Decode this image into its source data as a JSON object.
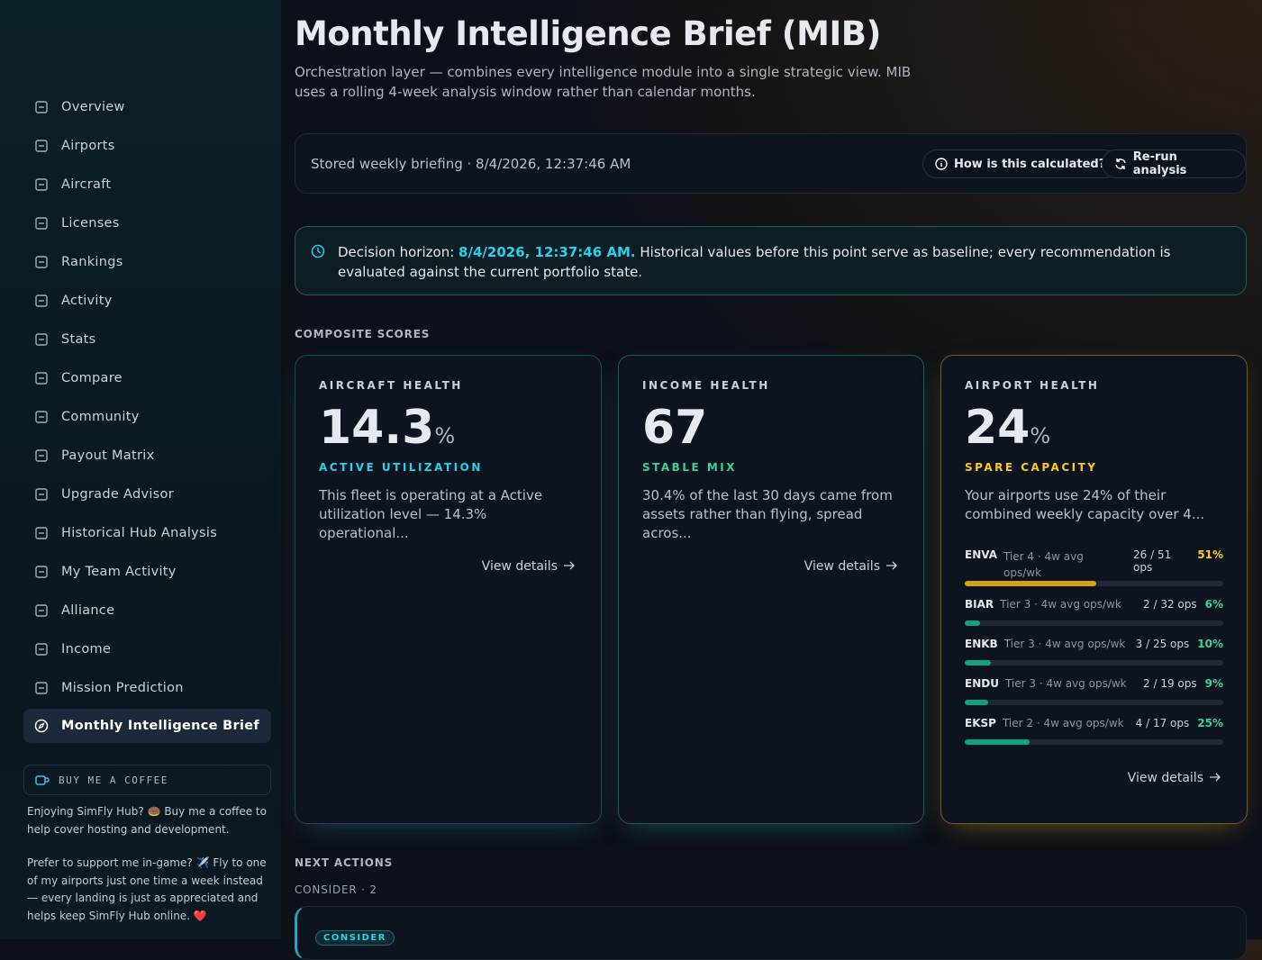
{
  "sidebar": {
    "nav": [
      "Overview",
      "Airports",
      "Aircraft",
      "Licenses",
      "Rankings",
      "Activity",
      "Stats",
      "Compare",
      "Community",
      "Payout Matrix",
      "Upgrade Advisor",
      "Historical Hub Analysis",
      "My Team Activity",
      "Alliance",
      "Income",
      "Mission Prediction",
      "Monthly Intelligence Brief"
    ],
    "coffee": {
      "button": "BUY ME A COFFEE",
      "text1": "Enjoying SimFly Hub? 🍩 Buy me a coffee to help cover hosting and development.",
      "text2": "Prefer to support me in-game? ✈️ Fly to one of my airports just one time a week instead — every landing is just as appreciated and helps keep SimFly Hub online. ❤️"
    }
  },
  "header": {
    "title": "Monthly Intelligence Brief (MIB)",
    "subtitle": "Orchestration layer — combines every intelligence module into a single strategic view. MIB uses a rolling 4-week analysis window rather than calendar months."
  },
  "briefing": {
    "text": "Stored weekly briefing · 8/4/2026, 12:37:46 AM",
    "how": "How is this calculated?",
    "rerun": "Re-run analysis"
  },
  "horizon": {
    "prefix": "Decision horizon:",
    "date": "8/4/2026, 12:37:46 AM.",
    "suffix": "Historical values before this point serve as baseline; every recommendation is evaluated against the current portfolio state."
  },
  "composite": {
    "heading": "COMPOSITE SCORES",
    "cards": [
      {
        "label": "AIRCRAFT HEALTH",
        "score": "14.3",
        "unit": "%",
        "status": "ACTIVE UTILIZATION",
        "text": "This fleet is operating at a Active utilization level — 14.3% operational...",
        "link": "View details"
      },
      {
        "label": "INCOME HEALTH",
        "score": "67",
        "status": "STABLE MIX",
        "text": "30.4% of the last 30 days came from assets rather than flying, spread acros...",
        "link": "View details"
      },
      {
        "label": "AIRPORT HEALTH",
        "score": "24",
        "unit": "%",
        "status": "SPARE CAPACITY",
        "text": "Your airports use 24% of their combined weekly capacity over 4...",
        "link": "View details",
        "airports": [
          {
            "code": "ENVA",
            "detail": "Tier 4 · 4w avg ops/wk",
            "ops": "26 / 51 ops",
            "share": 51,
            "share_label": "51%"
          },
          {
            "code": "BIAR",
            "detail": "Tier 3 · 4w avg ops/wk",
            "ops": "2 / 32 ops",
            "share": 6,
            "share_label": "6%"
          },
          {
            "code": "ENKB",
            "detail": "Tier 3 · 4w avg ops/wk",
            "ops": "3 / 25 ops",
            "share": 10,
            "share_label": "10%"
          },
          {
            "code": "ENDU",
            "detail": "Tier 3 · 4w avg ops/wk",
            "ops": "2 / 19 ops",
            "share": 9,
            "share_label": "9%"
          },
          {
            "code": "EKSP",
            "detail": "Tier 2 · 4w avg ops/wk",
            "ops": "4 / 17 ops",
            "share": 25,
            "share_label": "25%"
          }
        ]
      }
    ]
  },
  "next": {
    "heading": "NEXT ACTIONS",
    "group": "CONSIDER · 2",
    "badge": "CONSIDER"
  }
}
